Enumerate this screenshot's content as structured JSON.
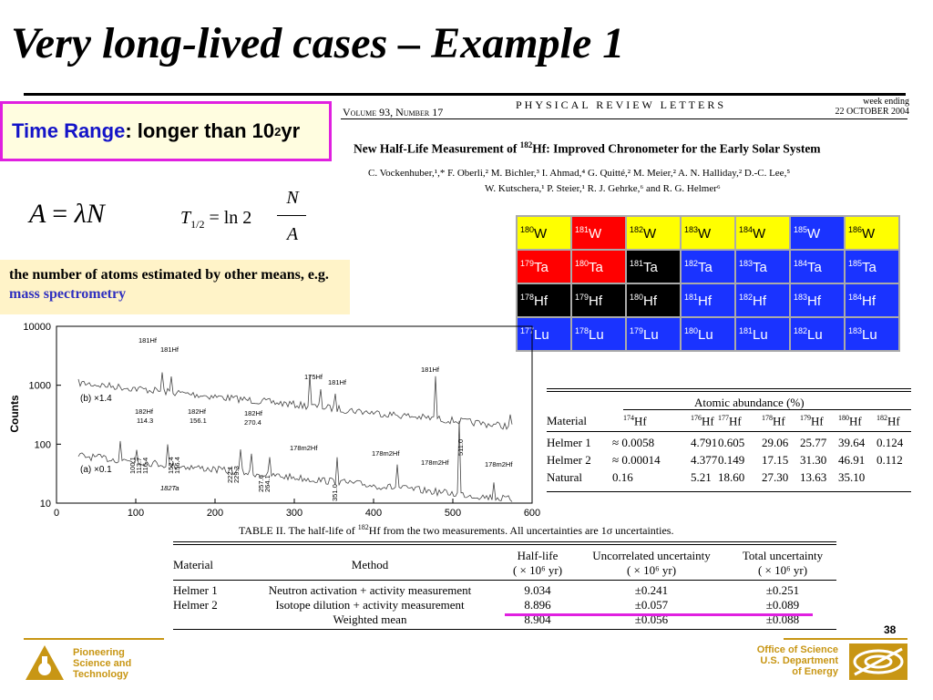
{
  "slide": {
    "title": "Very long-lived cases – Example 1",
    "time_range": {
      "label": "Time Range",
      "text": ": longer than 10",
      "exp": "2",
      "unit": " yr"
    },
    "formula_a": {
      "lhs": "A",
      "eq": "=",
      "lambda": "λ",
      "n": "N"
    },
    "formula_t": {
      "t": "T",
      "sub": "1/2",
      "eq": "= ln 2",
      "num": "N",
      "den": "A"
    },
    "note": {
      "text": "the number of atoms estimated by other means, e.g. ",
      "link": "mass spectrometry"
    },
    "page_number": "38"
  },
  "paper": {
    "volume": "Volume 93, Number 17",
    "journal": "PHYSICAL  REVIEW  LETTERS",
    "week_line1": "week ending",
    "week_line2": "22 OCTOBER 2004",
    "title_a": "New Half-Life Measurement of ",
    "title_sup": "182",
    "title_b": "Hf: Improved Chronometer for the Early Solar System",
    "authors1": "C. Vockenhuber,¹,* F. Oberli,² M. Bichler,³ I. Ahmad,⁴ G. Quitté,² M. Meier,² A. N. Halliday,² D.-C. Lee,⁵",
    "authors2": "W. Kutschera,¹ P. Steier,¹ R. J. Gehrke,⁶ and R. G. Helmer⁶"
  },
  "nuclide_grid": {
    "colors": {
      "yellow": "#ffff00",
      "red": "#ff0000",
      "black": "#000000",
      "blue": "#1a33ff"
    },
    "rows": [
      [
        {
          "m": "180",
          "s": "W",
          "c": "yellow"
        },
        {
          "m": "181",
          "s": "W",
          "c": "red"
        },
        {
          "m": "182",
          "s": "W",
          "c": "yellow"
        },
        {
          "m": "183",
          "s": "W",
          "c": "yellow"
        },
        {
          "m": "184",
          "s": "W",
          "c": "yellow"
        },
        {
          "m": "185",
          "s": "W",
          "c": "blue"
        },
        {
          "m": "186",
          "s": "W",
          "c": "yellow"
        }
      ],
      [
        {
          "m": "179",
          "s": "Ta",
          "c": "red"
        },
        {
          "m": "180",
          "s": "Ta",
          "c": "red"
        },
        {
          "m": "181",
          "s": "Ta",
          "c": "black"
        },
        {
          "m": "182",
          "s": "Ta",
          "c": "blue"
        },
        {
          "m": "183",
          "s": "Ta",
          "c": "blue"
        },
        {
          "m": "184",
          "s": "Ta",
          "c": "blue"
        },
        {
          "m": "185",
          "s": "Ta",
          "c": "blue"
        }
      ],
      [
        {
          "m": "178",
          "s": "Hf",
          "c": "black"
        },
        {
          "m": "179",
          "s": "Hf",
          "c": "black"
        },
        {
          "m": "180",
          "s": "Hf",
          "c": "black"
        },
        {
          "m": "181",
          "s": "Hf",
          "c": "blue"
        },
        {
          "m": "182",
          "s": "Hf",
          "c": "blue"
        },
        {
          "m": "183",
          "s": "Hf",
          "c": "blue"
        },
        {
          "m": "184",
          "s": "Hf",
          "c": "blue"
        }
      ],
      [
        {
          "m": "177",
          "s": "Lu",
          "c": "blue"
        },
        {
          "m": "178",
          "s": "Lu",
          "c": "blue"
        },
        {
          "m": "179",
          "s": "Lu",
          "c": "blue"
        },
        {
          "m": "180",
          "s": "Lu",
          "c": "blue"
        },
        {
          "m": "181",
          "s": "Lu",
          "c": "blue"
        },
        {
          "m": "182",
          "s": "Lu",
          "c": "blue"
        },
        {
          "m": "183",
          "s": "Lu",
          "c": "blue"
        }
      ]
    ]
  },
  "abundance_table": {
    "group_header": "Atomic abundance (%)",
    "headers": [
      "Material",
      "174Hf",
      "176Hf",
      "177Hf",
      "178Hf",
      "179Hf",
      "180Hf",
      "182Hf"
    ],
    "rows": [
      [
        "Helmer 1",
        "≈ 0.0058",
        "4.791",
        "0.605",
        "29.06",
        "25.77",
        "39.64",
        "0.124"
      ],
      [
        "Helmer 2",
        "≈ 0.00014",
        "4.377",
        "0.149",
        "17.15",
        "31.30",
        "46.91",
        "0.112"
      ],
      [
        "Natural",
        "0.16",
        "5.21",
        "18.60",
        "27.30",
        "13.63",
        "35.10",
        ""
      ]
    ]
  },
  "spectrum": {
    "y_label": "Counts",
    "y_ticks": [
      "10000",
      "1000",
      "100",
      "10"
    ],
    "x_ticks": [
      "0",
      "100",
      "200",
      "300",
      "400",
      "500",
      "600"
    ],
    "trace_b": "(b) ×1.4",
    "trace_a": "(a) ×0.1",
    "labels": [
      {
        "t": "181Hf",
        "id": "l1"
      },
      {
        "t": "181Hf",
        "id": "l2"
      },
      {
        "t": "175Hf",
        "id": "l3"
      },
      {
        "t": "181Hf",
        "id": "l4"
      },
      {
        "t": "181Hf",
        "id": "l5"
      },
      {
        "t": "182Hf",
        "id": "l6"
      },
      {
        "t": "114.3",
        "id": "l7"
      },
      {
        "t": "182Hf",
        "id": "l8"
      },
      {
        "t": "156.1",
        "id": "l9"
      },
      {
        "t": "182Hf",
        "id": "l10"
      },
      {
        "t": "270.4",
        "id": "l11"
      },
      {
        "t": "178m2Hf",
        "id": "l12"
      },
      {
        "t": "178m2Hf",
        "id": "l13"
      },
      {
        "t": "178m2Hf",
        "id": "l14"
      },
      {
        "t": "178m2Hf",
        "id": "l15"
      },
      {
        "t": "182Ta",
        "id": "l16"
      },
      {
        "t": "100.1",
        "id": "v1"
      },
      {
        "t": "113.7",
        "id": "v2"
      },
      {
        "t": "116.4",
        "id": "v3"
      },
      {
        "t": "152.4",
        "id": "v4"
      },
      {
        "t": "156.4",
        "id": "v5"
      },
      {
        "t": "222.1",
        "id": "v6"
      },
      {
        "t": "229.3",
        "id": "v7"
      },
      {
        "t": "257.6",
        "id": "v8"
      },
      {
        "t": "264.1",
        "id": "v9"
      },
      {
        "t": "351.0",
        "id": "v10"
      },
      {
        "t": "511.0",
        "id": "v11"
      }
    ]
  },
  "halflife_table": {
    "caption_a": "TABLE II.   The half-life of ",
    "caption_sup": "182",
    "caption_b": "Hf from the two measurements. All uncertainties are 1σ uncertainties.",
    "headers": [
      "Material",
      "Method",
      "Half-life",
      "Uncorrelated uncertainty",
      "Total uncertainty"
    ],
    "units": [
      "",
      "",
      "( × 10⁶ yr)",
      "( × 10⁶ yr)",
      "( × 10⁶ yr)"
    ],
    "rows": [
      [
        "Helmer 1",
        "Neutron activation + activity measurement",
        "9.034",
        "±0.241",
        "±0.251"
      ],
      [
        "Helmer 2",
        "Isotope dilution + activity measurement",
        "8.896",
        "±0.057",
        "±0.089"
      ],
      [
        "",
        "Weighted mean",
        "8.904",
        "±0.056",
        "±0.088"
      ]
    ],
    "highlight_color": "#e020e0"
  },
  "footer": {
    "left": [
      "Pioneering",
      "Science and",
      "Technology"
    ],
    "right": [
      "Office of Science",
      "U.S. Department",
      "of Energy"
    ],
    "accent": "#c89614"
  }
}
